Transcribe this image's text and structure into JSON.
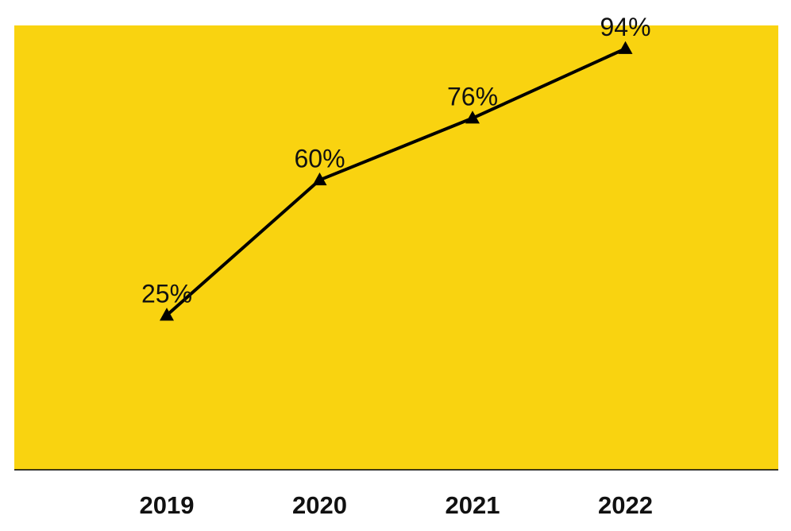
{
  "chart_data": {
    "type": "line",
    "categories": [
      "2019",
      "2020",
      "2021",
      "2022"
    ],
    "series": [
      {
        "values": [
          25,
          60,
          76,
          94
        ],
        "labels": [
          "25%",
          "60%",
          "76%",
          "94%"
        ],
        "color": "#000000",
        "marker": "triangle"
      }
    ],
    "title": "",
    "xlabel": "",
    "ylabel": "",
    "ylim": [
      -15,
      100
    ],
    "grid": false,
    "legend": "none",
    "plot_background": "#F9D310",
    "axis_color": "#000000"
  }
}
